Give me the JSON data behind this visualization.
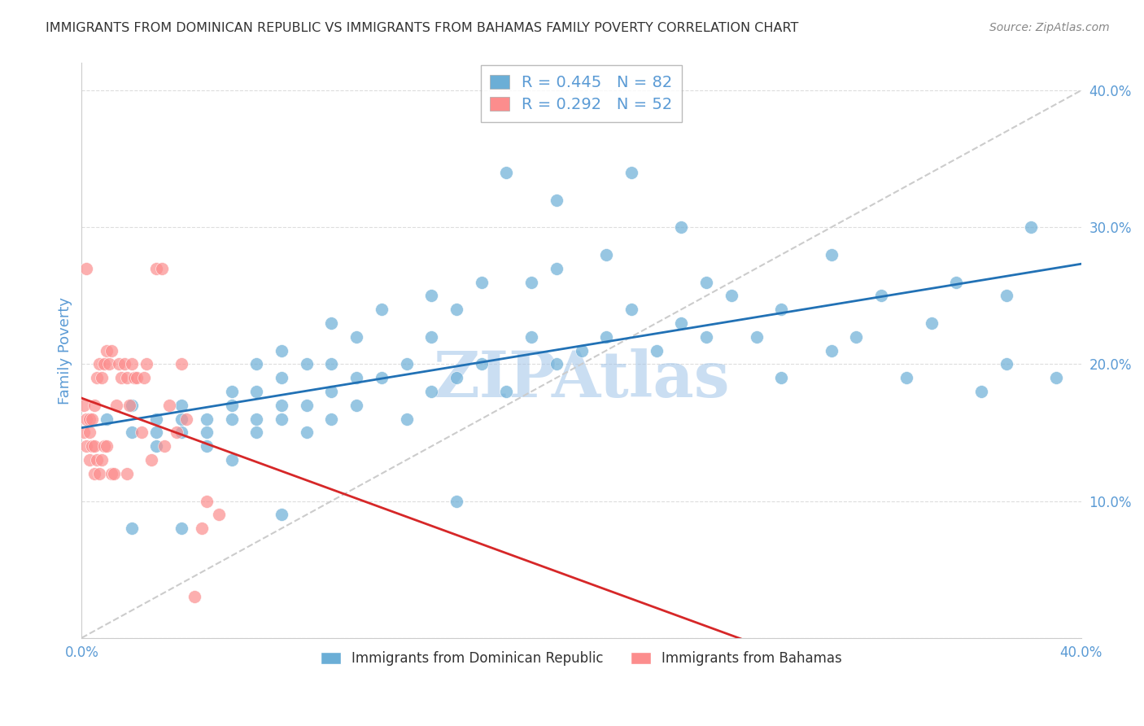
{
  "title": "IMMIGRANTS FROM DOMINICAN REPUBLIC VS IMMIGRANTS FROM BAHAMAS FAMILY POVERTY CORRELATION CHART",
  "source": "Source: ZipAtlas.com",
  "ylabel": "Family Poverty",
  "xlim": [
    0.0,
    0.4
  ],
  "ylim": [
    0.0,
    0.42
  ],
  "ytick_vals": [
    0.0,
    0.1,
    0.2,
    0.3,
    0.4
  ],
  "ytick_labels": [
    "",
    "10.0%",
    "20.0%",
    "30.0%",
    "40.0%"
  ],
  "xtick_vals": [
    0.0,
    0.05,
    0.1,
    0.15,
    0.2,
    0.25,
    0.3,
    0.35,
    0.4
  ],
  "xtick_labels": [
    "0.0%",
    "",
    "",
    "",
    "",
    "",
    "",
    "",
    "40.0%"
  ],
  "blue_R": 0.445,
  "blue_N": 82,
  "pink_R": 0.292,
  "pink_N": 52,
  "blue_color": "#6baed6",
  "pink_color": "#fc8d8d",
  "blue_line_color": "#2171b5",
  "pink_line_color": "#d62728",
  "diag_line_color": "#cccccc",
  "watermark_color": "#a0c4e8",
  "background_color": "#ffffff",
  "grid_color": "#dddddd",
  "title_color": "#333333",
  "axis_label_color": "#5b9bd5",
  "tick_label_color": "#5b9bd5",
  "blue_scatter_x": [
    0.01,
    0.02,
    0.02,
    0.03,
    0.03,
    0.03,
    0.04,
    0.04,
    0.04,
    0.05,
    0.05,
    0.05,
    0.06,
    0.06,
    0.06,
    0.07,
    0.07,
    0.07,
    0.07,
    0.08,
    0.08,
    0.08,
    0.08,
    0.09,
    0.09,
    0.09,
    0.1,
    0.1,
    0.1,
    0.1,
    0.11,
    0.11,
    0.11,
    0.12,
    0.12,
    0.13,
    0.13,
    0.14,
    0.14,
    0.14,
    0.15,
    0.15,
    0.16,
    0.16,
    0.17,
    0.18,
    0.18,
    0.19,
    0.19,
    0.2,
    0.21,
    0.21,
    0.22,
    0.23,
    0.24,
    0.24,
    0.25,
    0.25,
    0.26,
    0.27,
    0.28,
    0.28,
    0.3,
    0.3,
    0.31,
    0.32,
    0.33,
    0.34,
    0.35,
    0.36,
    0.37,
    0.37,
    0.38,
    0.39,
    0.22,
    0.17,
    0.19,
    0.15,
    0.08,
    0.06,
    0.04,
    0.02
  ],
  "blue_scatter_y": [
    0.16,
    0.15,
    0.17,
    0.14,
    0.16,
    0.15,
    0.15,
    0.16,
    0.17,
    0.14,
    0.15,
    0.16,
    0.16,
    0.17,
    0.18,
    0.15,
    0.16,
    0.18,
    0.2,
    0.16,
    0.17,
    0.19,
    0.21,
    0.15,
    0.17,
    0.2,
    0.16,
    0.18,
    0.2,
    0.23,
    0.17,
    0.19,
    0.22,
    0.19,
    0.24,
    0.16,
    0.2,
    0.18,
    0.22,
    0.25,
    0.19,
    0.24,
    0.2,
    0.26,
    0.18,
    0.22,
    0.26,
    0.2,
    0.27,
    0.21,
    0.22,
    0.28,
    0.24,
    0.21,
    0.23,
    0.3,
    0.22,
    0.26,
    0.25,
    0.22,
    0.24,
    0.19,
    0.21,
    0.28,
    0.22,
    0.25,
    0.19,
    0.23,
    0.26,
    0.18,
    0.25,
    0.2,
    0.3,
    0.19,
    0.34,
    0.34,
    0.32,
    0.1,
    0.09,
    0.13,
    0.08,
    0.08
  ],
  "pink_scatter_x": [
    0.001,
    0.001,
    0.002,
    0.002,
    0.002,
    0.003,
    0.003,
    0.003,
    0.004,
    0.004,
    0.005,
    0.005,
    0.005,
    0.006,
    0.006,
    0.007,
    0.007,
    0.008,
    0.008,
    0.009,
    0.009,
    0.01,
    0.01,
    0.011,
    0.012,
    0.012,
    0.013,
    0.014,
    0.015,
    0.016,
    0.017,
    0.018,
    0.018,
    0.019,
    0.02,
    0.021,
    0.022,
    0.024,
    0.025,
    0.026,
    0.028,
    0.03,
    0.032,
    0.033,
    0.035,
    0.038,
    0.04,
    0.042,
    0.045,
    0.048,
    0.05,
    0.055
  ],
  "pink_scatter_y": [
    0.15,
    0.17,
    0.14,
    0.16,
    0.27,
    0.13,
    0.15,
    0.16,
    0.14,
    0.16,
    0.12,
    0.14,
    0.17,
    0.13,
    0.19,
    0.12,
    0.2,
    0.13,
    0.19,
    0.14,
    0.2,
    0.14,
    0.21,
    0.2,
    0.12,
    0.21,
    0.12,
    0.17,
    0.2,
    0.19,
    0.2,
    0.19,
    0.12,
    0.17,
    0.2,
    0.19,
    0.19,
    0.15,
    0.19,
    0.2,
    0.13,
    0.27,
    0.27,
    0.14,
    0.17,
    0.15,
    0.2,
    0.16,
    0.03,
    0.08,
    0.1,
    0.09
  ],
  "legend_bottom_blue": "Immigrants from Dominican Republic",
  "legend_bottom_pink": "Immigrants from Bahamas"
}
